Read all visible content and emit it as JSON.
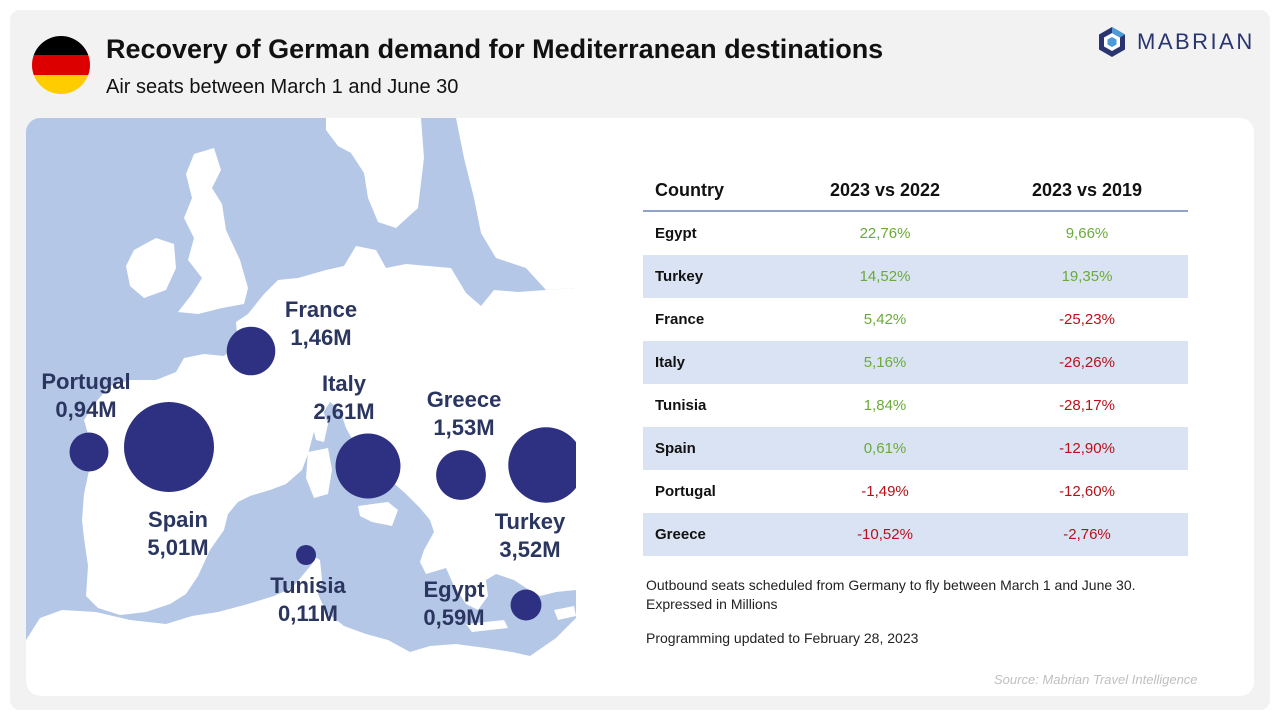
{
  "header": {
    "title": "Recovery of German demand for Mediterranean destinations",
    "subtitle": "Air seats between March 1 and June 30",
    "flag_colors": [
      "#000000",
      "#dd0000",
      "#ffcc00"
    ],
    "logo_text": "MABRIAN"
  },
  "colors": {
    "sea": "#b4c7e7",
    "land": "#ffffff",
    "bubble": "#2e3182",
    "positive": "#6aaa3a",
    "negative": "#b5121b",
    "row_alt": "#dae3f3"
  },
  "map": {
    "bubbles": [
      {
        "country": "France",
        "value": "1,46M",
        "seats_m": 1.46
      },
      {
        "country": "Portugal",
        "value": "0,94M",
        "seats_m": 0.94
      },
      {
        "country": "Italy",
        "value": "2,61M",
        "seats_m": 2.61
      },
      {
        "country": "Greece",
        "value": "1,53M",
        "seats_m": 1.53
      },
      {
        "country": "Spain",
        "value": "5,01M",
        "seats_m": 5.01
      },
      {
        "country": "Turkey",
        "value": "3,52M",
        "seats_m": 3.52
      },
      {
        "country": "Tunisia",
        "value": "0,11M",
        "seats_m": 0.11
      },
      {
        "country": "Egypt",
        "value": "0,59M",
        "seats_m": 0.59
      }
    ]
  },
  "table": {
    "headers": [
      "Country",
      "2023 vs 2022",
      "2023 vs 2019"
    ],
    "rows": [
      {
        "country": "Egypt",
        "vs2022": "22,76%",
        "vs2019": "9,66%"
      },
      {
        "country": "Turkey",
        "vs2022": "14,52%",
        "vs2019": "19,35%"
      },
      {
        "country": "France",
        "vs2022": "5,42%",
        "vs2019": "-25,23%"
      },
      {
        "country": "Italy",
        "vs2022": "5,16%",
        "vs2019": "-26,26%"
      },
      {
        "country": "Tunisia",
        "vs2022": "1,84%",
        "vs2019": "-28,17%"
      },
      {
        "country": "Spain",
        "vs2022": "0,61%",
        "vs2019": "-12,90%"
      },
      {
        "country": "Portugal",
        "vs2022": "-1,49%",
        "vs2019": "-12,60%"
      },
      {
        "country": "Greece",
        "vs2022": "-10,52%",
        "vs2019": "-2,76%"
      }
    ]
  },
  "notes": {
    "line1": "Outbound seats scheduled from Germany to fly between March 1 and June 30.",
    "line2": "Expressed in Millions",
    "updated": "Programming updated to February 28, 2023",
    "source": "Source: Mabrian Travel Intelligence"
  }
}
